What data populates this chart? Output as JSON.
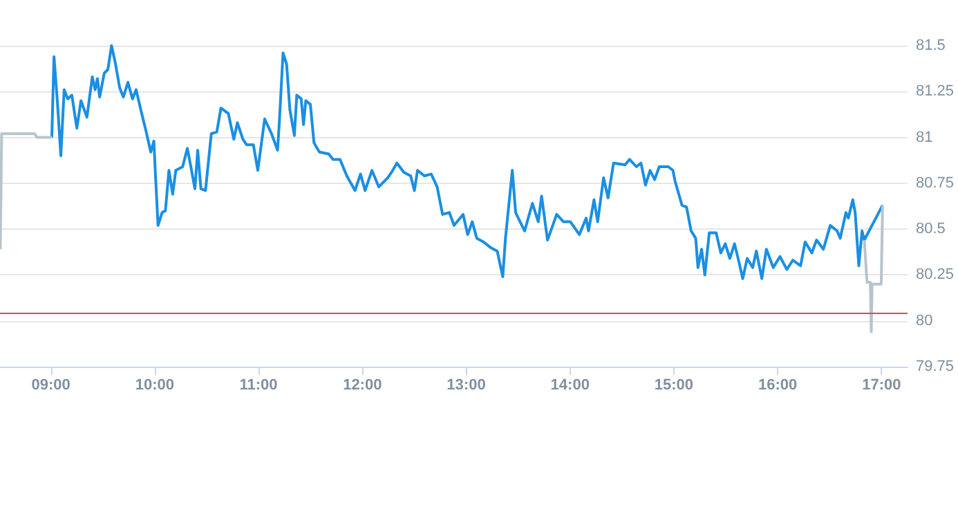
{
  "chart_data": {
    "type": "line",
    "xlim": [
      8.51,
      17.25
    ],
    "ylim": [
      79.75,
      81.5
    ],
    "xticks": [
      {
        "value": 9,
        "label": "09:00"
      },
      {
        "value": 10,
        "label": "10:00"
      },
      {
        "value": 11,
        "label": "11:00"
      },
      {
        "value": 12,
        "label": "12:00"
      },
      {
        "value": 13,
        "label": "13:00"
      },
      {
        "value": 14,
        "label": "14:00"
      },
      {
        "value": 15,
        "label": "15:00"
      },
      {
        "value": 16,
        "label": "16:00"
      },
      {
        "value": 17,
        "label": "17:00"
      }
    ],
    "yticks": [
      79.75,
      80,
      80.25,
      80.5,
      80.75,
      81,
      81.25,
      81.5
    ],
    "grid": "y",
    "marker": "none",
    "line_style": "solid",
    "ref_lines": [
      {
        "axis": "y",
        "value": 80.04,
        "color": "#d0504a"
      }
    ],
    "series": [
      {
        "color": "#1a8fe3",
        "x": [
          9.009,
          9.03,
          9.062,
          9.096,
          9.128,
          9.162,
          9.202,
          9.25,
          9.29,
          9.347,
          9.399,
          9.426,
          9.448,
          9.47,
          9.514,
          9.549,
          9.584,
          9.619,
          9.663,
          9.698,
          9.742,
          9.786,
          9.821,
          9.866,
          9.918,
          9.962,
          9.992,
          10.005,
          10.032,
          10.071,
          10.103,
          10.137,
          10.173,
          10.203,
          10.269,
          10.314,
          10.348,
          10.387,
          10.414,
          10.445,
          10.489,
          10.545,
          10.598,
          10.638,
          10.709,
          10.762,
          10.796,
          10.849,
          10.884,
          10.95,
          10.993,
          11.059,
          11.125,
          11.183,
          11.2,
          11.236,
          11.27,
          11.302,
          11.345,
          11.368,
          11.411,
          11.433,
          11.455,
          11.499,
          11.534,
          11.586,
          11.675,
          11.718,
          11.784,
          11.85,
          11.929,
          11.982,
          12.026,
          12.092,
          12.158,
          12.245,
          12.281,
          12.333,
          12.399,
          12.465,
          12.501,
          12.531,
          12.597,
          12.663,
          12.72,
          12.772,
          12.838,
          12.883,
          12.97,
          13.014,
          13.058,
          13.102,
          13.167,
          13.233,
          13.299,
          13.352,
          13.378,
          13.444,
          13.476,
          13.519,
          13.563,
          13.607,
          13.638,
          13.694,
          13.726,
          13.783,
          13.871,
          13.937,
          14.003,
          14.09,
          14.155,
          14.178,
          14.231,
          14.266,
          14.323,
          14.366,
          14.419,
          14.53,
          14.573,
          14.639,
          14.683,
          14.727,
          14.771,
          14.815,
          14.859,
          14.946,
          14.991,
          15.012,
          15.078,
          15.122,
          15.166,
          15.21,
          15.232,
          15.267,
          15.298,
          15.341,
          15.407,
          15.452,
          15.495,
          15.539,
          15.584,
          15.627,
          15.663,
          15.706,
          15.759,
          15.794,
          15.847,
          15.891,
          15.957,
          16.022,
          16.088,
          16.145,
          16.22,
          16.264,
          16.329,
          16.374,
          16.44,
          16.506,
          16.572,
          16.602,
          16.657,
          16.68,
          16.723,
          16.746,
          16.781,
          16.812,
          16.834,
          17.01
        ],
        "values": [
          81.0,
          81.44,
          81.2,
          80.9,
          81.26,
          81.21,
          81.23,
          81.05,
          81.2,
          81.11,
          81.33,
          81.26,
          81.32,
          81.22,
          81.35,
          81.37,
          81.5,
          81.41,
          81.27,
          81.22,
          81.3,
          81.21,
          81.26,
          81.15,
          81.03,
          80.92,
          80.98,
          80.82,
          80.52,
          80.59,
          80.6,
          80.82,
          80.69,
          80.82,
          80.84,
          80.94,
          80.84,
          80.72,
          80.93,
          80.72,
          80.71,
          81.02,
          81.03,
          81.16,
          81.13,
          80.99,
          81.08,
          80.99,
          80.96,
          80.96,
          80.82,
          81.1,
          81.02,
          80.93,
          81.08,
          81.46,
          81.4,
          81.15,
          81.01,
          81.23,
          81.21,
          81.07,
          81.2,
          81.18,
          80.97,
          80.92,
          80.91,
          80.88,
          80.88,
          80.79,
          80.71,
          80.8,
          80.71,
          80.82,
          80.73,
          80.78,
          80.81,
          80.86,
          80.81,
          80.79,
          80.71,
          80.82,
          80.79,
          80.8,
          80.73,
          80.58,
          80.59,
          80.52,
          80.58,
          80.47,
          80.54,
          80.45,
          80.43,
          80.4,
          80.38,
          80.24,
          80.45,
          80.82,
          80.59,
          80.54,
          80.49,
          80.58,
          80.64,
          80.54,
          80.68,
          80.44,
          80.58,
          80.54,
          80.54,
          80.47,
          80.56,
          80.49,
          80.66,
          80.54,
          80.78,
          80.67,
          80.86,
          80.85,
          80.88,
          80.84,
          80.86,
          80.74,
          80.82,
          80.77,
          80.84,
          80.84,
          80.82,
          80.76,
          80.63,
          80.62,
          80.49,
          80.45,
          80.29,
          80.39,
          80.25,
          80.48,
          80.48,
          80.37,
          80.42,
          80.34,
          80.42,
          80.32,
          80.23,
          80.34,
          80.29,
          80.38,
          80.23,
          80.39,
          80.29,
          80.35,
          80.28,
          80.33,
          80.3,
          80.43,
          80.37,
          80.44,
          80.39,
          80.52,
          80.49,
          80.45,
          80.59,
          80.56,
          80.66,
          80.59,
          80.3,
          80.49,
          80.44,
          80.63
        ]
      },
      {
        "color": "#b8c4cc",
        "x": [
          8.513,
          8.526,
          8.842,
          8.868,
          9.009,
          null,
          16.834,
          16.86,
          16.892,
          16.901,
          16.909,
          16.997,
          17.01
        ],
        "values": [
          80.39,
          81.02,
          81.02,
          81.0,
          81.0,
          null,
          80.44,
          80.21,
          80.21,
          79.94,
          80.2,
          80.2,
          80.63
        ]
      }
    ]
  }
}
